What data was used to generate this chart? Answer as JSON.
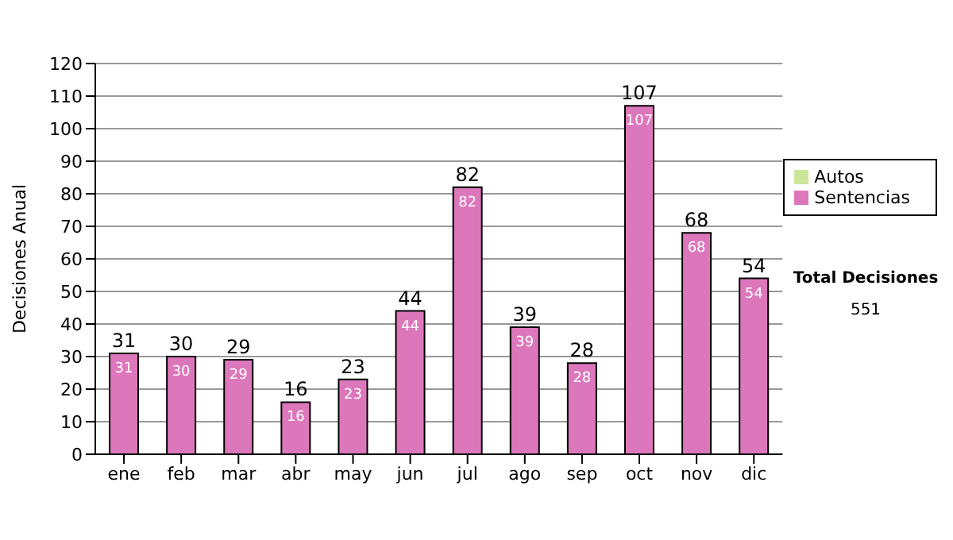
{
  "chart_data": {
    "type": "bar",
    "ylabel": "Decisiones Anual",
    "categories": [
      "ene",
      "feb",
      "mar",
      "abr",
      "may",
      "jun",
      "jul",
      "ago",
      "sep",
      "oct",
      "nov",
      "dic"
    ],
    "series": [
      {
        "name": "Sentencias",
        "color": "#dd77bb",
        "values": [
          31,
          30,
          29,
          16,
          23,
          44,
          82,
          39,
          28,
          107,
          68,
          54
        ],
        "value_labels": [
          "31",
          "30",
          "29",
          "16",
          "23",
          "44",
          "82",
          "39",
          "28",
          "107",
          "68",
          "54"
        ]
      },
      {
        "name": "Autos",
        "color": "#cce699",
        "values": [
          0,
          0,
          0,
          0,
          0,
          0,
          0,
          0,
          0,
          0,
          0,
          0
        ]
      }
    ],
    "stacked": true,
    "totals": [
      "31",
      "30",
      "29",
      "16",
      "23",
      "44",
      "82",
      "39",
      "28",
      "107",
      "68",
      "54"
    ],
    "ylim": [
      0,
      120
    ],
    "yticks": [
      0,
      10,
      20,
      30,
      40,
      50,
      60,
      70,
      80,
      90,
      100,
      110,
      120
    ],
    "grid": "y",
    "legend": "right",
    "annotations": [
      "Total Decisiones",
      "551"
    ]
  }
}
